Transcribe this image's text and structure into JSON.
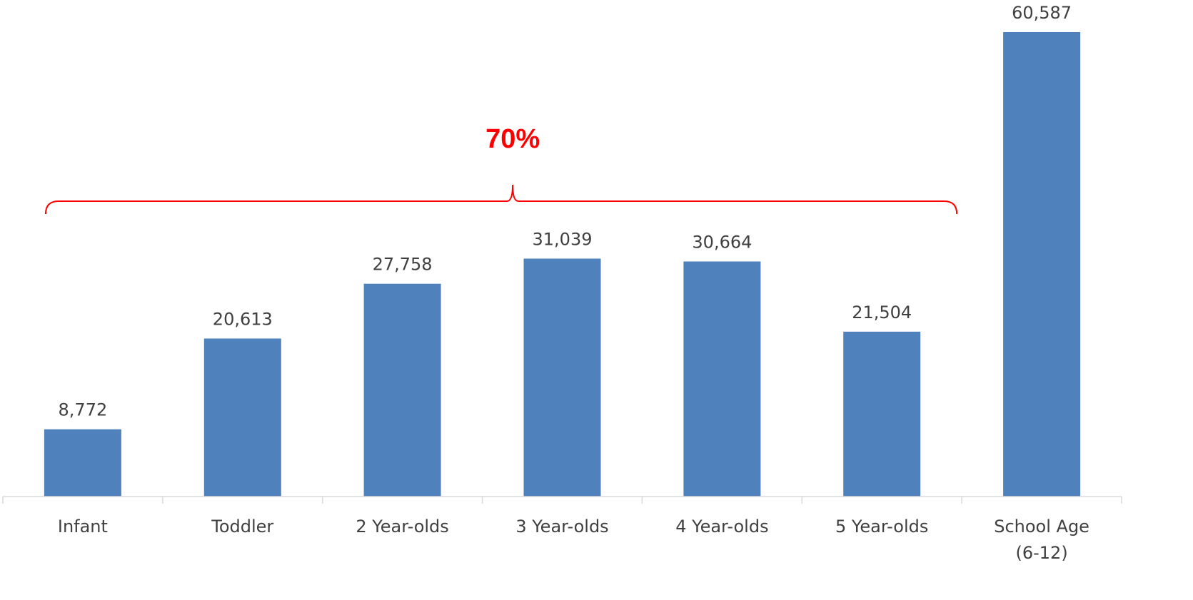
{
  "chart_data": {
    "type": "bar",
    "title": "",
    "xlabel": "",
    "ylabel": "",
    "categories": [
      "Infant",
      "Toddler",
      "2 Year-olds",
      "3 Year-olds",
      "4 Year-olds",
      "5 Year-olds",
      "School Age (6-12)"
    ],
    "category_lines": [
      [
        "Infant"
      ],
      [
        "Toddler"
      ],
      [
        "2 Year-olds"
      ],
      [
        "3 Year-olds"
      ],
      [
        "4 Year-olds"
      ],
      [
        "5 Year-olds"
      ],
      [
        "School Age",
        "(6-12)"
      ]
    ],
    "values": [
      8772,
      20613,
      27758,
      31039,
      30664,
      21504,
      60587
    ],
    "value_labels": [
      "8,772",
      "20,613",
      "27,758",
      "31,039",
      "30,664",
      "21,504",
      "60,587"
    ],
    "ylim": [
      0,
      60587
    ],
    "grid": false,
    "legend": "none",
    "bar_color": "#4f81bd",
    "annotation": {
      "text": "70%",
      "color": "#ff0000",
      "spans_categories": [
        "Infant",
        "5 Year-olds"
      ]
    }
  }
}
